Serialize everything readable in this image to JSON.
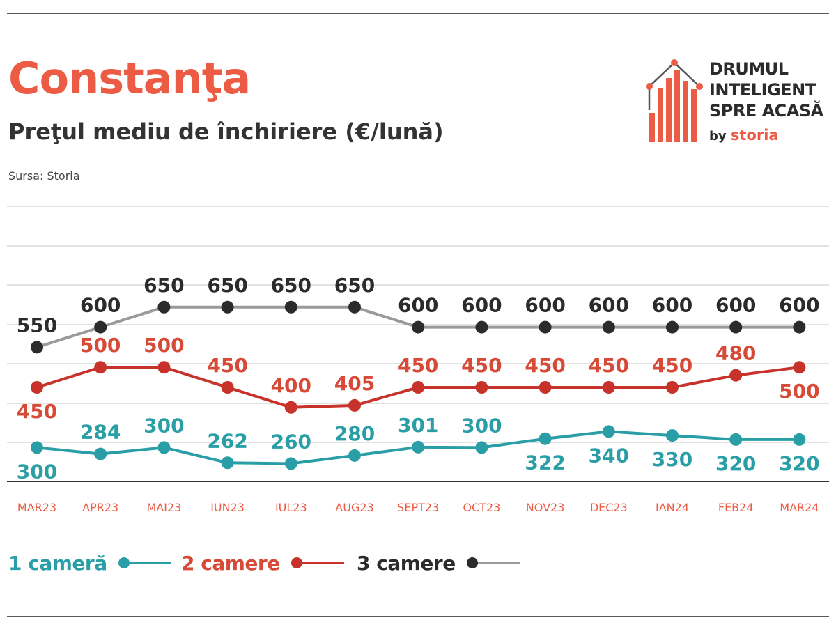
{
  "header": {
    "title": "Constanţa",
    "subtitle": "Preţul mediu de închiriere (€/lună)",
    "source": "Sursa: Storia"
  },
  "logo": {
    "line1": "DRUMUL",
    "line2": "INTELIGENT",
    "line3": "SPRE ACASĂ",
    "by": "by",
    "brand": "storia",
    "icon": "house-bars-icon"
  },
  "colors": {
    "title": "#ec5b44",
    "series_1": "#2a9ea6",
    "series_2": "#c7332a",
    "series_2_label": "#d64a37",
    "series_3": "#2b2b2b",
    "series_3_line": "#9a9a9a",
    "axis_label": "#ec5b44",
    "grid": "#e2e2e2"
  },
  "chart_data": {
    "type": "line",
    "title": "Preţul mediu de închiriere (€/lună)",
    "categories": [
      "MAR23",
      "APR23",
      "MAI23",
      "IUN23",
      "IUL23",
      "AUG23",
      "SEPT23",
      "OCT23",
      "NOV23",
      "DEC23",
      "IAN24",
      "FEB24",
      "MAR24"
    ],
    "series": [
      {
        "name": "1 cameră",
        "values": [
          300,
          284,
          300,
          262,
          260,
          280,
          301,
          300,
          322,
          340,
          330,
          320,
          320
        ],
        "label_pos": [
          "below",
          "above",
          "above",
          "above",
          "above",
          "above",
          "above",
          "above",
          "below",
          "below",
          "below",
          "below",
          "below"
        ]
      },
      {
        "name": "2 camere",
        "values": [
          450,
          500,
          500,
          450,
          400,
          405,
          450,
          450,
          450,
          450,
          450,
          480,
          500
        ],
        "label_pos": [
          "below",
          "above",
          "above",
          "above",
          "above",
          "above",
          "above",
          "above",
          "above",
          "above",
          "above",
          "above",
          "below"
        ]
      },
      {
        "name": "3 camere",
        "values": [
          550,
          600,
          650,
          650,
          650,
          650,
          600,
          600,
          600,
          600,
          600,
          600,
          600
        ],
        "label_pos": [
          "above",
          "above",
          "above",
          "above",
          "above",
          "above",
          "above",
          "above",
          "above",
          "above",
          "above",
          "above",
          "above"
        ]
      }
    ],
    "grid": true,
    "legend": "bottom"
  }
}
